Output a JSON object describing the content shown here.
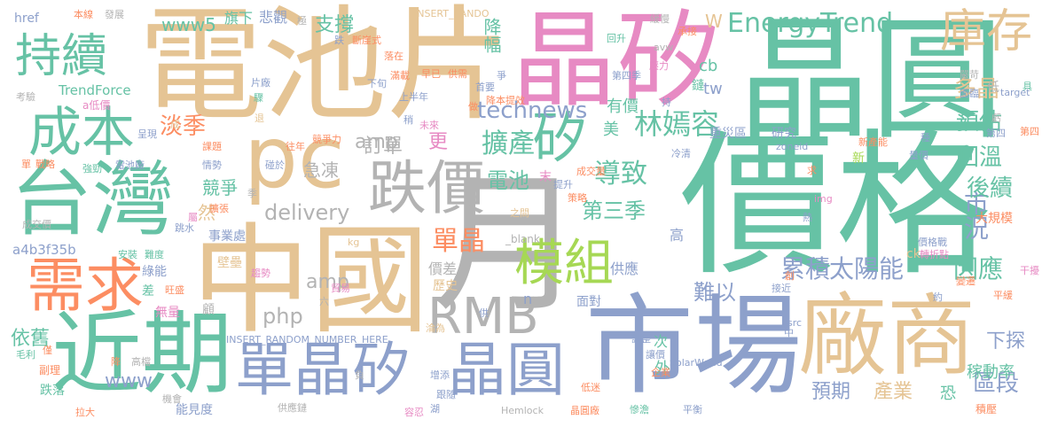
{
  "palette": {
    "green": "#66c2a5",
    "orange": "#fc8d62",
    "blue": "#8da0cb",
    "pink": "#e78ac3",
    "lime": "#a6d854",
    "yellow": "#ffd92f",
    "tan": "#e5c494",
    "gray": "#b3b3b3"
  },
  "words": [
    {
      "text": "價格",
      "color": "#66c2a5"
    },
    {
      "text": "電池片",
      "color": "#e5c494"
    },
    {
      "text": "晶圓",
      "color": "#66c2a5"
    },
    {
      "text": "晶矽",
      "color": "#e78ac3"
    },
    {
      "text": "中國",
      "color": "#e5c494"
    },
    {
      "text": "月",
      "color": "#b3b3b3"
    },
    {
      "text": "市場",
      "color": "#8da0cb"
    },
    {
      "text": "台灣",
      "color": "#66c2a5"
    },
    {
      "text": "廠商",
      "color": "#e5c494"
    },
    {
      "text": "近期",
      "color": "#66c2a5"
    },
    {
      "text": "pc",
      "color": "#e5c494"
    },
    {
      "text": "跌價",
      "color": "#b3b3b3"
    },
    {
      "text": "單晶矽",
      "color": "#8da0cb"
    },
    {
      "text": "晶圓",
      "color": "#8da0cb"
    },
    {
      "text": "需求",
      "color": "#fc8d62"
    },
    {
      "text": "成本",
      "color": "#66c2a5"
    },
    {
      "text": "持續",
      "color": "#66c2a5"
    },
    {
      "text": "RMB",
      "color": "#b3b3b3"
    },
    {
      "text": "模組",
      "color": "#a6d854"
    },
    {
      "text": "矽",
      "color": "#66c2a5"
    },
    {
      "text": "庫存",
      "color": "#e5c494"
    },
    {
      "text": "EnergyTrend",
      "color": "#66c2a5"
    },
    {
      "text": "林嫣容",
      "color": "#66c2a5"
    },
    {
      "text": "www5",
      "color": "#66c2a5"
    },
    {
      "text": "delivery",
      "color": "#b3b3b3"
    },
    {
      "text": "technews",
      "color": "#8da0cb"
    },
    {
      "text": "太陽能",
      "color": "#8da0cb"
    },
    {
      "text": "累積",
      "color": "#8da0cb"
    },
    {
      "text": "因應",
      "color": "#66c2a5"
    },
    {
      "text": "單晶",
      "color": "#fc8d62"
    },
    {
      "text": "擴產",
      "color": "#66c2a5"
    },
    {
      "text": "淡季",
      "color": "#fc8d62"
    },
    {
      "text": "導致",
      "color": "#66c2a5"
    },
    {
      "text": "第三季",
      "color": "#66c2a5"
    },
    {
      "text": "市況",
      "color": "#8da0cb"
    },
    {
      "text": "區段",
      "color": "#8da0cb"
    },
    {
      "text": "下探",
      "color": "#8da0cb"
    },
    {
      "text": "後續",
      "color": "#66c2a5"
    },
    {
      "text": "回溫",
      "color": "#66c2a5"
    },
    {
      "text": "預估",
      "color": "#66c2a5"
    },
    {
      "text": "多晶",
      "color": "#e5c494"
    },
    {
      "text": "稼動率",
      "color": "#66c2a5"
    },
    {
      "text": "依舊",
      "color": "#66c2a5"
    },
    {
      "text": "產業",
      "color": "#e5c494"
    },
    {
      "text": "預期",
      "color": "#8da0cb"
    },
    {
      "text": "難以",
      "color": "#8da0cb"
    },
    {
      "text": "支撐",
      "color": "#66c2a5"
    },
    {
      "text": "降幅",
      "color": "#66c2a5"
    },
    {
      "text": "訂單",
      "color": "#b3b3b3"
    },
    {
      "text": "急凍",
      "color": "#b3b3b3"
    },
    {
      "text": "電池",
      "color": "#66c2a5"
    },
    {
      "text": "競爭",
      "color": "#66c2a5"
    },
    {
      "text": "amp",
      "color": "#b3b3b3"
    },
    {
      "text": "php",
      "color": "#b3b3b3"
    },
    {
      "text": "www",
      "color": "#8da0cb"
    },
    {
      "text": "a4b3f35b",
      "color": "#8da0cb"
    },
    {
      "text": "TrendForce",
      "color": "#66c2a5"
    },
    {
      "text": "INSERT_RANDOM_NUMBER_HERE",
      "color": "#8da0cb"
    },
    {
      "text": "INSERT_RANDO",
      "color": "#e5c494"
    },
    {
      "text": "SolarWorld",
      "color": "#8da0cb"
    },
    {
      "text": "Hemlock",
      "color": "#b3b3b3"
    },
    {
      "text": "_blank",
      "color": "#b3b3b3"
    },
    {
      "text": "zoneid",
      "color": "#8da0cb"
    },
    {
      "text": "target",
      "color": "#8da0cb"
    },
    {
      "text": "href",
      "color": "#8da0cb"
    },
    {
      "text": "更",
      "color": "#e78ac3"
    },
    {
      "text": "有價",
      "color": "#66c2a5"
    },
    {
      "text": "美",
      "color": "#66c2a5"
    },
    {
      "text": "cb",
      "color": "#66c2a5"
    },
    {
      "text": "tw",
      "color": "#8da0cb"
    },
    {
      "text": "W",
      "color": "#e5c494"
    },
    {
      "text": "然",
      "color": "#e5c494"
    },
    {
      "text": "外",
      "color": "#66c2a5"
    },
    {
      "text": "價差",
      "color": "#b3b3b3"
    },
    {
      "text": "供應",
      "color": "#8da0cb"
    },
    {
      "text": "歷史",
      "color": "#e5c494"
    },
    {
      "text": "高",
      "color": "#8da0cb"
    },
    {
      "text": "事業處",
      "color": "#8da0cb"
    },
    {
      "text": "綠能",
      "color": "#8da0cb"
    },
    {
      "text": "無量",
      "color": "#e78ac3"
    },
    {
      "text": "能見度",
      "color": "#8da0cb"
    },
    {
      "text": "跌落",
      "color": "#66c2a5"
    },
    {
      "text": "副理",
      "color": "#fc8d62"
    },
    {
      "text": "重災區",
      "color": "#8da0cb"
    },
    {
      "text": "研究",
      "color": "#8da0cb"
    },
    {
      "text": "大規模",
      "color": "#fc8d62"
    },
    {
      "text": "積壓",
      "color": "#fc8d62"
    },
    {
      "text": "旗下",
      "color": "#66c2a5"
    },
    {
      "text": "悲觀",
      "color": "#8da0cb"
    },
    {
      "text": "面對",
      "color": "#8da0cb"
    },
    {
      "text": "恐",
      "color": "#66c2a5"
    },
    {
      "text": "次",
      "color": "#66c2a5"
    },
    {
      "text": "n",
      "color": "#8da0cb"
    },
    {
      "text": "ck",
      "color": "#e5c494"
    },
    {
      "text": "kg",
      "color": "#e5c494"
    },
    {
      "text": "img",
      "color": "#e78ac3"
    },
    {
      "text": "src",
      "color": "#8da0cb"
    },
    {
      "text": "a低價",
      "color": "#e78ac3"
    },
    {
      "text": "本線",
      "color": "#fc8d62"
    },
    {
      "text": "發展",
      "color": "#b3b3b3"
    },
    {
      "text": "跌",
      "color": "#8da0cb"
    },
    {
      "text": "極",
      "color": "#b3b3b3"
    },
    {
      "text": "斷崖式",
      "color": "#fc8d62"
    },
    {
      "text": "落在",
      "color": "#fc8d62"
    },
    {
      "text": "回升",
      "color": "#66c2a5"
    },
    {
      "text": "avw",
      "color": "#b3b3b3"
    },
    {
      "text": "承接",
      "color": "#fc8d62"
    },
    {
      "text": "緩慢",
      "color": "#b3b3b3"
    },
    {
      "text": "壓力",
      "color": "#e78ac3"
    },
    {
      "text": "嚴苛",
      "color": "#b3b3b3"
    },
    {
      "text": "面臨",
      "color": "#8da0cb"
    },
    {
      "text": "具",
      "color": "#66c2a5"
    },
    {
      "text": "虧",
      "color": "#b3b3b3"
    },
    {
      "text": "第四",
      "color": "#fc8d62"
    },
    {
      "text": "低",
      "color": "#b3b3b3"
    },
    {
      "text": "鏈",
      "color": "#66c2a5"
    },
    {
      "text": "考驗",
      "color": "#b3b3b3"
    },
    {
      "text": "片廠",
      "color": "#8da0cb"
    },
    {
      "text": "驟",
      "color": "#66c2a5"
    },
    {
      "text": "退",
      "color": "#e5c494"
    },
    {
      "text": "成",
      "color": "#e5c494"
    },
    {
      "text": "呈現",
      "color": "#8da0cb"
    },
    {
      "text": "單",
      "color": "#fc8d62"
    },
    {
      "text": "戰略",
      "color": "#fc8d62"
    },
    {
      "text": "強勁",
      "color": "#66c2a5"
    },
    {
      "text": "電池廠",
      "color": "#8da0cb"
    },
    {
      "text": "跳水",
      "color": "#8da0cb"
    },
    {
      "text": "成交價",
      "color": "#b3b3b3"
    },
    {
      "text": "屬",
      "color": "#e78ac3"
    },
    {
      "text": "安裝",
      "color": "#66c2a5"
    },
    {
      "text": "難度",
      "color": "#66c2a5"
    },
    {
      "text": "旺盛",
      "color": "#fc8d62"
    },
    {
      "text": "差",
      "color": "#66c2a5"
    },
    {
      "text": "毛利",
      "color": "#66c2a5"
    },
    {
      "text": "拉大",
      "color": "#fc8d62"
    },
    {
      "text": "僅",
      "color": "#fc8d62"
    },
    {
      "text": "降",
      "color": "#fc8d62"
    },
    {
      "text": "高檔",
      "color": "#b3b3b3"
    },
    {
      "text": "機會",
      "color": "#b3b3b3"
    },
    {
      "text": "擴張",
      "color": "#fc8d62"
    },
    {
      "text": "情勢",
      "color": "#8da0cb"
    },
    {
      "text": "課題",
      "color": "#fc8d62"
    },
    {
      "text": "季",
      "color": "#b3b3b3"
    },
    {
      "text": "碰於",
      "color": "#8da0cb"
    },
    {
      "text": "往年",
      "color": "#fc8d62"
    },
    {
      "text": "競爭力",
      "color": "#fc8d62"
    },
    {
      "text": "滿載",
      "color": "#fc8d62"
    },
    {
      "text": "早已",
      "color": "#fc8d62"
    },
    {
      "text": "供需",
      "color": "#fc8d62"
    },
    {
      "text": "首要",
      "color": "#8da0cb"
    },
    {
      "text": "下旬",
      "color": "#8da0cb"
    },
    {
      "text": "稍",
      "color": "#8da0cb"
    },
    {
      "text": "未來",
      "color": "#e78ac3"
    },
    {
      "text": "降本提效",
      "color": "#fc8d62"
    },
    {
      "text": "第四季",
      "color": "#8da0cb"
    },
    {
      "text": "持",
      "color": "#8da0cb"
    },
    {
      "text": "冷清",
      "color": "#8da0cb"
    },
    {
      "text": "量價",
      "color": "#8da0cb"
    },
    {
      "text": "第四",
      "color": "#8da0cb"
    },
    {
      "text": "新產能",
      "color": "#fc8d62"
    },
    {
      "text": "新",
      "color": "#a6d854"
    },
    {
      "text": "求",
      "color": "#fc8d62"
    },
    {
      "text": "末",
      "color": "#e78ac3"
    },
    {
      "text": "成交量",
      "color": "#fc8d62"
    },
    {
      "text": "提升",
      "color": "#8da0cb"
    },
    {
      "text": "策略",
      "color": "#fc8d62"
    },
    {
      "text": "熱",
      "color": "#8da0cb"
    },
    {
      "text": "之間",
      "color": "#e5c494"
    },
    {
      "text": "價格戰",
      "color": "#8da0cb"
    },
    {
      "text": "驅使",
      "color": "#e78ac3"
    },
    {
      "text": "轉折點",
      "color": "#e78ac3"
    },
    {
      "text": "顯然",
      "color": "#e78ac3"
    },
    {
      "text": "顯現",
      "color": "#e78ac3"
    },
    {
      "text": "變遷",
      "color": "#e78ac3"
    },
    {
      "text": "平緩",
      "color": "#fc8d62"
    },
    {
      "text": "干擾",
      "color": "#fc8d62"
    },
    {
      "text": "約",
      "color": "#e78ac3"
    },
    {
      "text": "鉄破",
      "color": "#8da0cb"
    },
    {
      "text": "接近",
      "color": "#8da0cb"
    },
    {
      "text": "創",
      "color": "#8da0cb"
    },
    {
      "text": "中",
      "color": "#fc8d62"
    },
    {
      "text": "調整",
      "color": "#8da0cb"
    },
    {
      "text": "讓價",
      "color": "#8da0cb"
    },
    {
      "text": "企業",
      "color": "#8da0cb"
    },
    {
      "text": "失守",
      "color": "#fc8d62"
    },
    {
      "text": "低迷",
      "color": "#fc8d62"
    },
    {
      "text": "增添",
      "color": "#fc8d62"
    },
    {
      "text": "跟隨",
      "color": "#8da0cb"
    },
    {
      "text": "湖",
      "color": "#8da0cb"
    },
    {
      "text": "容忍",
      "color": "#8da0cb"
    },
    {
      "text": "供應鏈",
      "color": "#e78ac3"
    },
    {
      "text": "慘澹",
      "color": "#b3b3b3"
    },
    {
      "text": "晶圓廠",
      "color": "#66c2a5"
    },
    {
      "text": "平衡",
      "color": "#fc8d62"
    },
    {
      "text": "趨勢",
      "color": "#8da0cb"
    },
    {
      "text": "壁壘",
      "color": "#e78ac3"
    },
    {
      "text": "供",
      "color": "#e5c494"
    },
    {
      "text": "貿易",
      "color": "#8da0cb"
    },
    {
      "text": "六",
      "color": "#e78ac3"
    },
    {
      "text": "顧",
      "color": "#b3b3b3"
    },
    {
      "text": "淪為",
      "color": "#b3b3b3"
    },
    {
      "text": "負",
      "color": "#e5c494"
    },
    {
      "text": "做",
      "color": "#b3b3b3"
    },
    {
      "text": "上半年",
      "color": "#fc8d62"
    },
    {
      "text": "爭",
      "color": "#8da0cb"
    },
    {
      "text": "種",
      "color": "#8da0cb"
    },
    {
      "text": "季",
      "color": "#8da0cb"
    }
  ]
}
